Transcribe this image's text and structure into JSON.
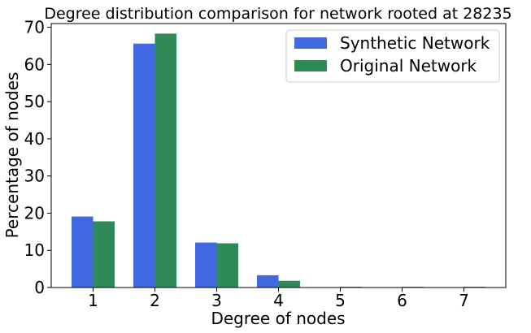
{
  "chart_data": {
    "type": "bar",
    "title": "Degree distribution comparison for network rooted at 28235",
    "xlabel": "Degree of nodes",
    "ylabel": "Percentage of nodes",
    "categories": [
      "1",
      "2",
      "3",
      "4",
      "5",
      "6",
      "7"
    ],
    "ylim": [
      0,
      71
    ],
    "yticks": [
      0,
      10,
      20,
      30,
      40,
      50,
      60,
      70
    ],
    "grid": false,
    "legend_position": "top-right",
    "series": [
      {
        "name": "Synthetic Network",
        "color": "#4169e1",
        "values": [
          19.1,
          65.6,
          12.1,
          3.3,
          0,
          0,
          0
        ]
      },
      {
        "name": "Original Network",
        "color": "#2e8b57",
        "values": [
          17.8,
          68.3,
          11.9,
          1.8,
          0.2,
          0.2,
          0.2
        ]
      }
    ]
  }
}
